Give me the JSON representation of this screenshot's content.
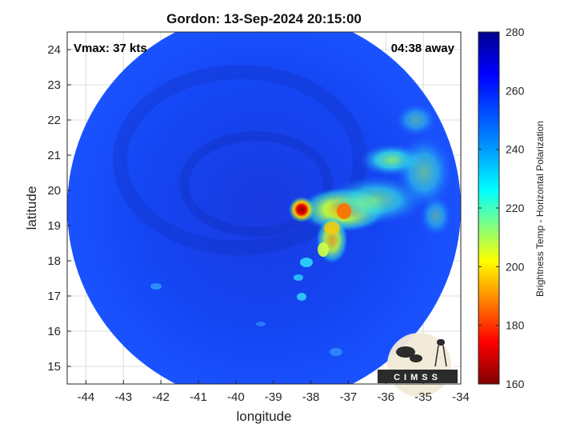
{
  "title": "Gordon: 13-Sep-2024 20:15:00",
  "vmax_label": "Vmax: 37 kts",
  "time_away_label": "04:38 away",
  "xlabel": "longitude",
  "ylabel": "latitude",
  "x_ticks": [
    "-44",
    "-43",
    "-42",
    "-41",
    "-40",
    "-39",
    "-38",
    "-37",
    "-36",
    "-35",
    "-34"
  ],
  "y_ticks": [
    "15",
    "16",
    "17",
    "18",
    "19",
    "20",
    "21",
    "22",
    "23",
    "24"
  ],
  "colorbar": {
    "label": "Brightness Temp - Horizontal Polarization",
    "ticks": [
      "160",
      "180",
      "200",
      "220",
      "240",
      "260",
      "280"
    ],
    "range": [
      160,
      280
    ],
    "colors": [
      "#7f0000",
      "#ff0000",
      "#ffff00",
      "#80ff80",
      "#00ffff",
      "#0080ff",
      "#0000ff",
      "#00008f"
    ]
  },
  "logo_text": "CIMSS",
  "map": {
    "lon_range": [
      -44.5,
      -34
    ],
    "lat_range": [
      14.5,
      24.5
    ],
    "swath_background_color": "#1440f0",
    "storm_center_lon": -38.3,
    "storm_center_lat": 19.5
  }
}
